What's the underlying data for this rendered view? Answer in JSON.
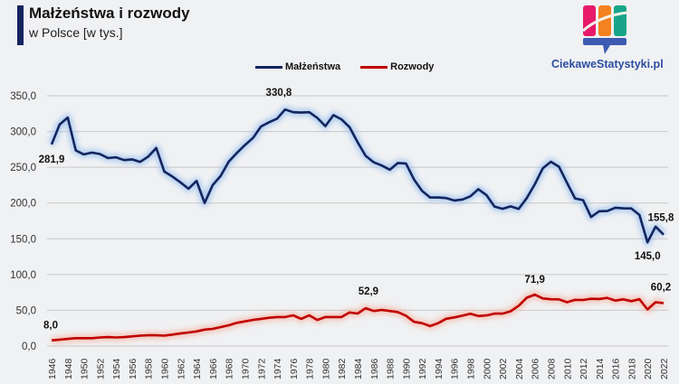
{
  "header": {
    "title": "Małżeństwa i rozwody",
    "subtitle": "w Polsce [w tys.]",
    "logo_text": "CiekaweStatystyki.pl",
    "accent": "#14245e"
  },
  "chart_data": {
    "type": "line",
    "title": "Małżeństwa i rozwody",
    "subtitle": "w Polsce [w tys.]",
    "xlabel": "",
    "ylabel": "",
    "ylim": [
      0,
      350
    ],
    "yticks": [
      "0,0",
      "50,0",
      "100,0",
      "150,0",
      "200,0",
      "250,0",
      "300,0",
      "350,0"
    ],
    "ytick_values": [
      0,
      50,
      100,
      150,
      200,
      250,
      300,
      350
    ],
    "grid": true,
    "legend_position": "top-center",
    "x": [
      1946,
      1947,
      1948,
      1949,
      1950,
      1951,
      1952,
      1953,
      1954,
      1955,
      1956,
      1957,
      1958,
      1959,
      1960,
      1961,
      1962,
      1963,
      1964,
      1965,
      1966,
      1967,
      1968,
      1969,
      1970,
      1971,
      1972,
      1973,
      1974,
      1975,
      1976,
      1977,
      1978,
      1979,
      1980,
      1981,
      1982,
      1983,
      1984,
      1985,
      1986,
      1987,
      1988,
      1989,
      1990,
      1991,
      1992,
      1993,
      1994,
      1995,
      1996,
      1997,
      1998,
      1999,
      2000,
      2001,
      2002,
      2003,
      2004,
      2005,
      2006,
      2007,
      2008,
      2009,
      2010,
      2011,
      2012,
      2013,
      2014,
      2015,
      2016,
      2017,
      2018,
      2019,
      2020,
      2021,
      2022
    ],
    "xtick_labels": [
      "1946",
      "1948",
      "1950",
      "1952",
      "1954",
      "1956",
      "1958",
      "1960",
      "1962",
      "1964",
      "1966",
      "1968",
      "1970",
      "1972",
      "1974",
      "1976",
      "1978",
      "1980",
      "1982",
      "1984",
      "1986",
      "1988",
      "1990",
      "1992",
      "1994",
      "1996",
      "1998",
      "2000",
      "2002",
      "2004",
      "2006",
      "2008",
      "2010",
      "2012",
      "2014",
      "2016",
      "2018",
      "2020",
      "2022"
    ],
    "series": [
      {
        "name": "Małżeństwa",
        "color": "#14245e",
        "values": [
          281.9,
          310,
          319.5,
          273.5,
          268,
          270.5,
          268.5,
          263,
          264,
          260,
          261,
          257.5,
          265,
          277,
          244,
          237,
          229,
          220,
          231,
          200,
          225,
          238,
          258,
          270,
          281,
          291,
          307,
          313,
          318,
          330.8,
          327,
          326.5,
          327,
          319,
          307.5,
          323,
          317,
          306,
          285,
          266,
          257,
          252.5,
          246.5,
          256,
          255.4,
          233,
          217,
          207.7,
          207.7,
          207,
          203.6,
          204.8,
          209.4,
          219.4,
          211.2,
          195.1,
          191.9,
          195.4,
          191.8,
          206.9,
          226.2,
          248.7,
          257.7,
          250.8,
          228.3,
          206.5,
          203.9,
          180.4,
          188.5,
          188.8,
          193.5,
          192.6,
          192.4,
          183.4,
          145.0,
          167,
          155.8
        ]
      },
      {
        "name": "Rozwody",
        "color": "#c00000",
        "values": [
          8.0,
          9.0,
          10.0,
          11.0,
          11.0,
          11.0,
          12.0,
          12.5,
          12.0,
          12.5,
          13.5,
          14.5,
          15.0,
          15.0,
          14.5,
          16.0,
          17.5,
          19.0,
          20.5,
          23.0,
          24.0,
          26.5,
          29.0,
          32.5,
          34.5,
          36.5,
          38.0,
          39.5,
          40.5,
          40.5,
          43.0,
          38.0,
          43.0,
          36.5,
          40.5,
          40.5,
          40.5,
          47.0,
          45.5,
          52.9,
          49.0,
          50.5,
          49.0,
          47.5,
          42.4,
          33.8,
          32.0,
          27.9,
          32.0,
          38.1,
          40.1,
          42.5,
          45.2,
          42.0,
          42.8,
          45.3,
          45.4,
          48.6,
          56.3,
          67.6,
          71.9,
          66.6,
          65.5,
          65.3,
          61.3,
          64.6,
          64.4,
          66.1,
          65.8,
          67.3,
          63.6,
          65.3,
          62.8,
          65.4,
          51.2,
          61.3,
          60.2
        ]
      }
    ],
    "annotations": [
      {
        "series": "Małżeństwa",
        "x": 1946,
        "label": "281,9"
      },
      {
        "series": "Małżeństwa",
        "x": 1975,
        "label": "330,8"
      },
      {
        "series": "Małżeństwa",
        "x": 2020,
        "label": "145,0"
      },
      {
        "series": "Małżeństwa",
        "x": 2022,
        "label": "155,8"
      },
      {
        "series": "Rozwody",
        "x": 1946,
        "label": "8,0"
      },
      {
        "series": "Rozwody",
        "x": 1985,
        "label": "52,9"
      },
      {
        "series": "Rozwody",
        "x": 2006,
        "label": "71,9"
      },
      {
        "series": "Rozwody",
        "x": 2022,
        "label": "60,2"
      }
    ]
  }
}
